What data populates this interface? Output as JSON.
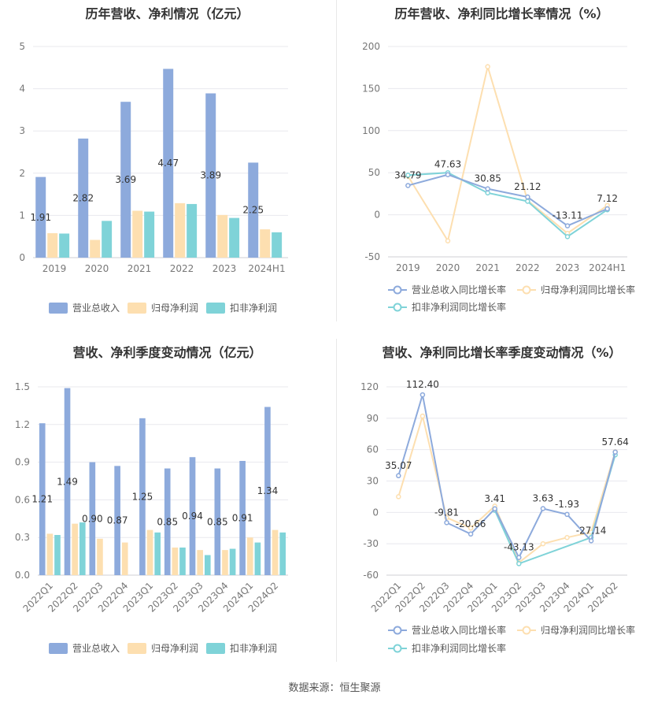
{
  "source": "数据来源：恒生聚源",
  "colors": {
    "revenue": "#8DAADC",
    "net_profit": "#FDDFB0",
    "deducted_profit": "#7FD3D8",
    "grid": "#E8E8EE",
    "axis_text": "#777777",
    "label_text": "#333333"
  },
  "chart_data": [
    {
      "id": "annual-amount",
      "type": "bar",
      "title": "历年营收、净利情况（亿元）",
      "categories": [
        "2019",
        "2020",
        "2021",
        "2022",
        "2023",
        "2024H1"
      ],
      "ylim": [
        0,
        5
      ],
      "yticks": [
        0,
        1,
        2,
        3,
        4,
        5
      ],
      "series": [
        {
          "name": "营业总收入",
          "values": [
            1.91,
            2.82,
            3.69,
            4.47,
            3.89,
            2.25
          ],
          "labels": [
            "1.91",
            "2.82",
            "3.69",
            "4.47",
            "3.89",
            "2.25"
          ]
        },
        {
          "name": "归母净利润",
          "values": [
            0.58,
            0.42,
            1.11,
            1.29,
            1.01,
            0.67
          ]
        },
        {
          "name": "扣非净利润",
          "values": [
            0.57,
            0.87,
            1.09,
            1.27,
            0.94,
            0.6
          ]
        }
      ],
      "grid": true,
      "legend": "bottom"
    },
    {
      "id": "annual-growth",
      "type": "line",
      "title": "历年营收、净利同比增长率情况（%）",
      "categories": [
        "2019",
        "2020",
        "2021",
        "2022",
        "2023",
        "2024H1"
      ],
      "ylim": [
        -50,
        200
      ],
      "yticks": [
        -50,
        0,
        50,
        100,
        150,
        200
      ],
      "series": [
        {
          "name": "营业总收入同比增长率",
          "values": [
            34.79,
            47.63,
            30.85,
            21.12,
            -13.11,
            7.12
          ],
          "labels": [
            "34.79",
            "47.63",
            "30.85",
            "21.12",
            "-13.11",
            "7.12"
          ]
        },
        {
          "name": "归母净利润同比增长率",
          "values": [
            46,
            -31,
            176,
            17,
            -22,
            11
          ]
        },
        {
          "name": "扣非净利润同比增长率",
          "values": [
            47,
            50,
            26,
            16,
            -26,
            6
          ]
        }
      ],
      "grid": true,
      "legend": "bottom"
    },
    {
      "id": "quarterly-amount",
      "type": "bar",
      "title": "营收、净利季度变动情况（亿元）",
      "categories": [
        "2022Q1",
        "2022Q2",
        "2022Q3",
        "2022Q4",
        "2023Q1",
        "2023Q2",
        "2023Q3",
        "2023Q4",
        "2024Q1",
        "2024Q2"
      ],
      "ylim": [
        0,
        1.5
      ],
      "yticks": [
        0,
        0.3,
        0.6,
        0.9,
        1.2,
        1.5
      ],
      "series": [
        {
          "name": "营业总收入",
          "values": [
            1.21,
            1.49,
            0.9,
            0.87,
            1.25,
            0.85,
            0.94,
            0.85,
            0.91,
            1.34
          ],
          "labels": [
            "1.21",
            "1.49",
            "0.90",
            "0.87",
            "1.25",
            "0.85",
            "0.94",
            "0.85",
            "0.91",
            "1.34"
          ]
        },
        {
          "name": "归母净利润",
          "values": [
            0.33,
            0.41,
            0.29,
            0.26,
            0.36,
            0.22,
            0.2,
            0.2,
            0.3,
            0.36
          ]
        },
        {
          "name": "扣非净利润",
          "values": [
            0.32,
            0.42,
            0.0,
            0.0,
            0.34,
            0.22,
            0.16,
            0.21,
            0.26,
            0.34
          ]
        }
      ],
      "grid": true,
      "legend": "bottom"
    },
    {
      "id": "quarterly-growth",
      "type": "line",
      "title": "营收、净利同比增长率季度变动情况（%）",
      "categories": [
        "2022Q1",
        "2022Q2",
        "2022Q3",
        "2022Q4",
        "2023Q1",
        "2023Q2",
        "2023Q3",
        "2023Q4",
        "2024Q1",
        "2024Q2"
      ],
      "ylim": [
        -60,
        120
      ],
      "yticks": [
        -60,
        -30,
        0,
        30,
        60,
        90,
        120
      ],
      "series": [
        {
          "name": "营业总收入同比增长率",
          "values": [
            35.07,
            112.4,
            -9.81,
            -20.66,
            3.41,
            -43.13,
            3.63,
            -1.93,
            -27.14,
            57.64
          ],
          "labels": [
            "35.07",
            "112.40",
            "-9.81",
            "-20.66",
            "3.41",
            "-43.13",
            "3.63",
            "-1.93",
            "-27.14",
            "57.64"
          ]
        },
        {
          "name": "归母净利润同比增长率",
          "values": [
            15,
            92,
            -5,
            -15,
            6,
            -48,
            -30,
            -24,
            -19,
            58
          ]
        },
        {
          "name": "扣非净利润同比增长率",
          "values": [
            null,
            null,
            null,
            null,
            2,
            -49,
            null,
            null,
            -24,
            55
          ]
        }
      ],
      "grid": true,
      "legend": "bottom"
    }
  ]
}
